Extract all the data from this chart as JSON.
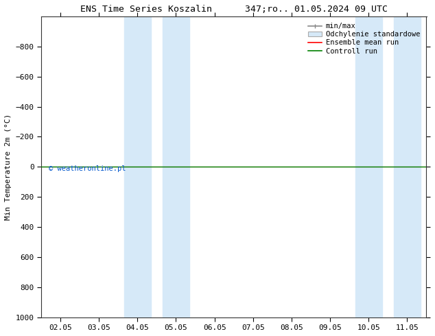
{
  "title": "ENS Time Series Koszalin      347;ro.. 01.05.2024 09 UTC",
  "ylabel": "Min Temperature 2m (°C)",
  "ylim_top": -1000,
  "ylim_bottom": 1000,
  "yticks": [
    -800,
    -600,
    -400,
    -200,
    0,
    200,
    400,
    600,
    800,
    1000
  ],
  "xtick_labels": [
    "02.05",
    "03.05",
    "04.05",
    "05.05",
    "06.05",
    "07.05",
    "08.05",
    "09.05",
    "10.05",
    "11.05"
  ],
  "xlim": [
    -0.5,
    9.5
  ],
  "shaded_regions": [
    {
      "xmin": 1.65,
      "xmax": 2.35,
      "color": "#d6e9f8"
    },
    {
      "xmin": 2.65,
      "xmax": 3.35,
      "color": "#d6e9f8"
    },
    {
      "xmin": 7.65,
      "xmax": 8.35,
      "color": "#d6e9f8"
    },
    {
      "xmin": 8.65,
      "xmax": 9.35,
      "color": "#d6e9f8"
    }
  ],
  "green_line_y": 0,
  "green_line_color": "#008000",
  "red_line_color": "#ff0000",
  "watermark": "© weatheronline.pl",
  "watermark_color": "#0055cc",
  "background_color": "#ffffff",
  "figsize": [
    6.34,
    4.9
  ],
  "dpi": 100
}
